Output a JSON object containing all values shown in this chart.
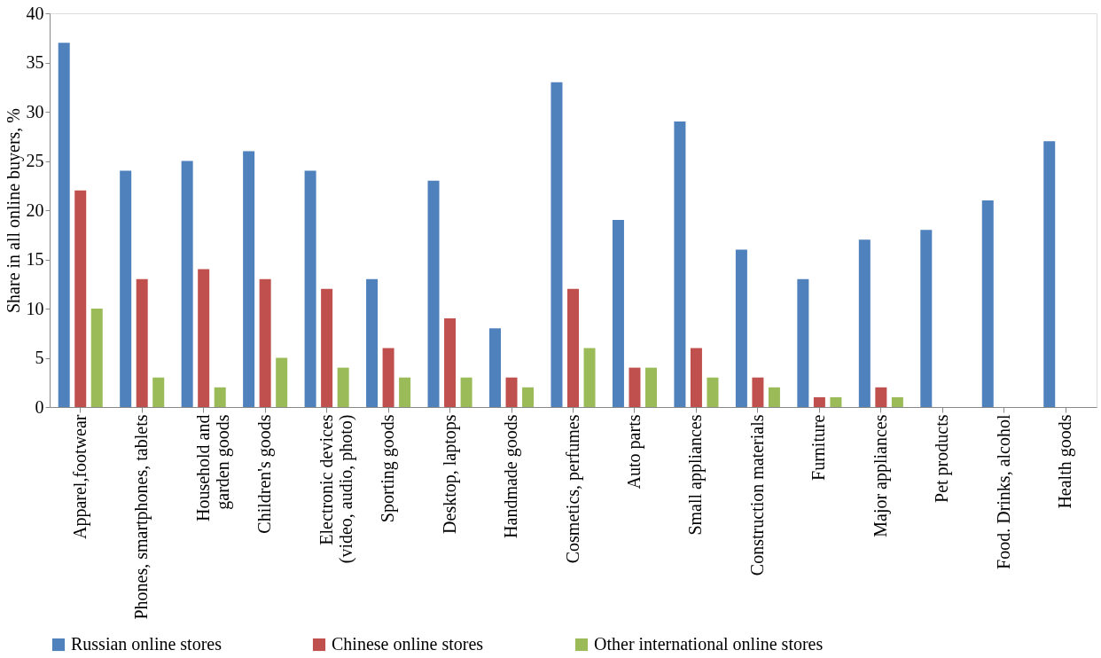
{
  "chart_data": {
    "type": "bar",
    "ylabel": "Share in all online buyers, %",
    "categories": [
      "Apparel,footwear",
      "Phones, smartphones, tablets",
      "Household and\ngarden goods",
      "Children's goods",
      "Electronic devices\n(video, audio, photo)",
      "Sporting goods",
      "Desktop, laptops",
      "Handmade goods",
      "Cosmetics, perfumes",
      "Auto parts",
      "Small appliances",
      "Construction materials",
      "Furniture",
      "Major appliances",
      "Pet products",
      "Food. Drinks, alcohol",
      "Health goods"
    ],
    "series": [
      {
        "name": "Russian online stores",
        "color": "#4f81bd",
        "values": [
          37,
          24,
          25,
          26,
          24,
          13,
          23,
          8,
          33,
          19,
          29,
          16,
          13,
          17,
          18,
          21,
          27
        ]
      },
      {
        "name": "Chinese online stores",
        "color": "#c0504d",
        "values": [
          22,
          13,
          14,
          13,
          12,
          6,
          9,
          3,
          12,
          4,
          6,
          3,
          1,
          2,
          null,
          null,
          null
        ]
      },
      {
        "name": "Other international online stores",
        "color": "#9bbb59",
        "values": [
          10,
          3,
          2,
          5,
          4,
          3,
          3,
          2,
          6,
          4,
          3,
          2,
          1,
          1,
          null,
          null,
          null
        ]
      }
    ],
    "ylim": [
      0,
      40
    ],
    "yticks": [
      0,
      5,
      10,
      15,
      20,
      25,
      30,
      35,
      40
    ],
    "grid": false,
    "legend": "bottom"
  }
}
